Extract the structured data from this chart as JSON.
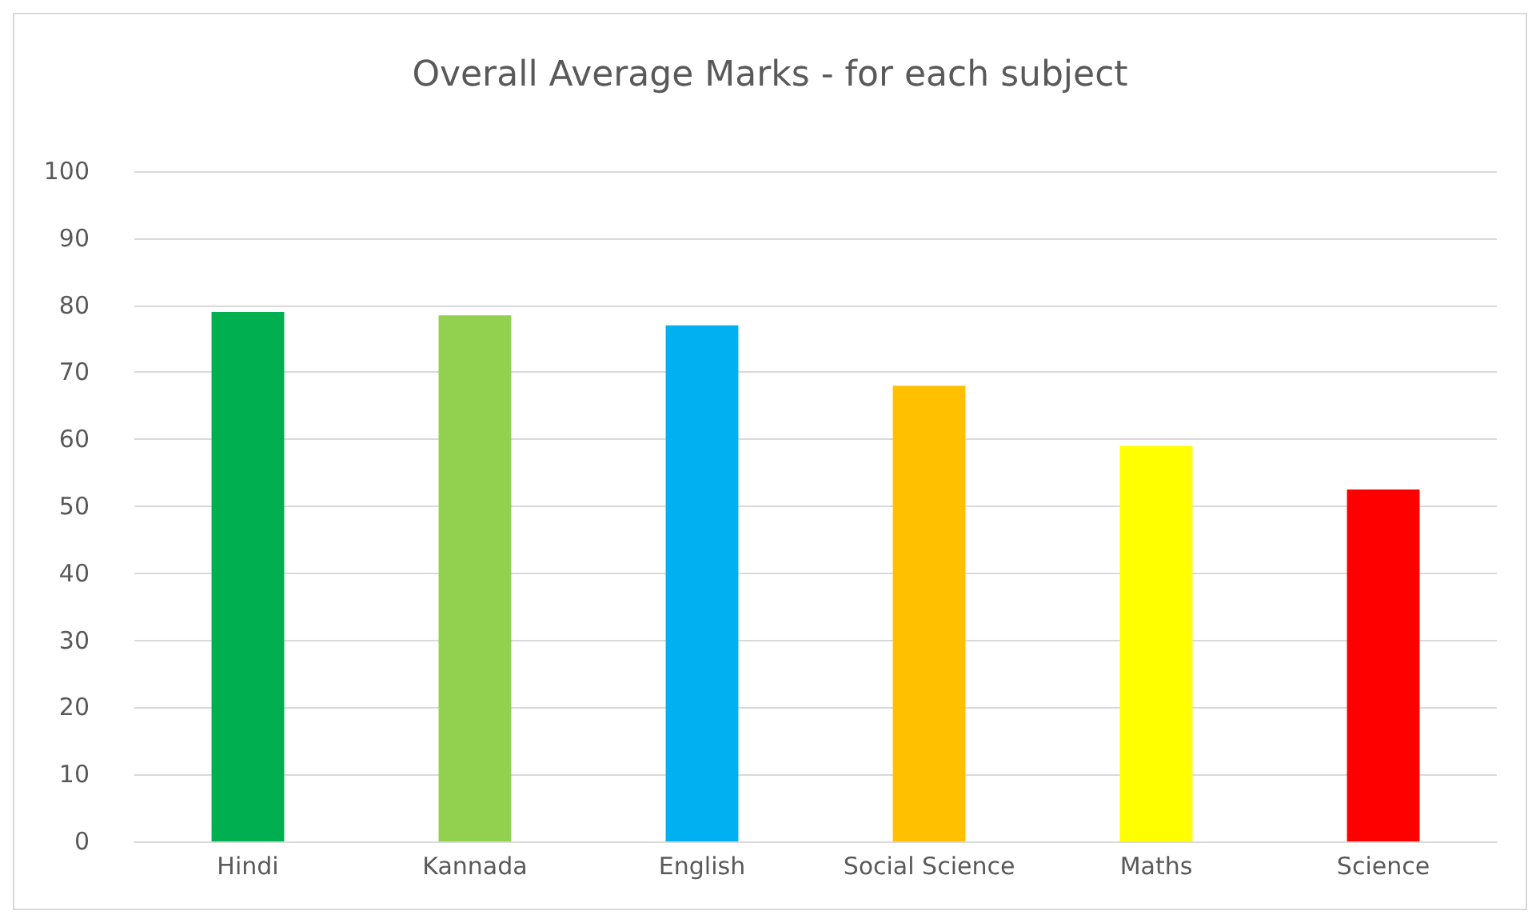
{
  "chart_data": {
    "type": "bar",
    "title": "Overall Average Marks - for each subject",
    "categories": [
      "Hindi",
      "Kannada",
      "English",
      "Social Science",
      "Maths",
      "Science"
    ],
    "values": [
      79,
      78.5,
      77,
      68,
      59,
      52.5
    ],
    "colors": [
      "#00b050",
      "#92d050",
      "#00b0f0",
      "#ffc000",
      "#ffff00",
      "#ff0000"
    ],
    "ylim": [
      0,
      100
    ],
    "yticks": [
      0,
      10,
      20,
      30,
      40,
      50,
      60,
      70,
      80,
      90,
      100
    ],
    "grid": "y"
  }
}
